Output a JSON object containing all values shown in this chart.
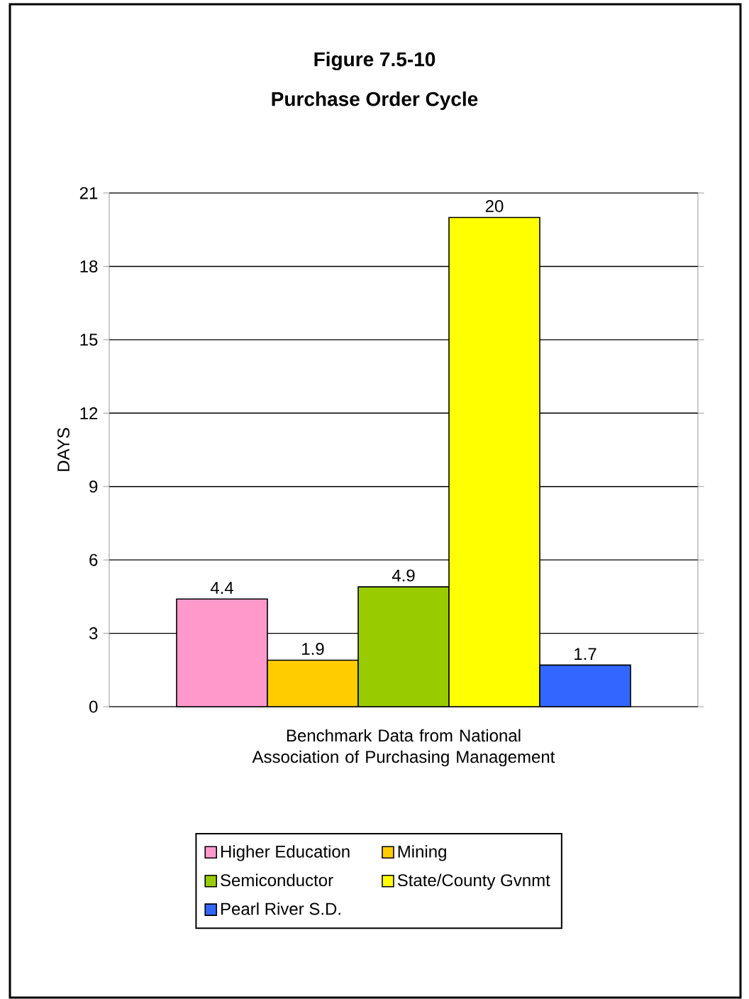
{
  "chart_data": {
    "type": "bar",
    "title": "Figure 7.5-10",
    "subtitle": "Purchase Order Cycle",
    "xlabel": "Benchmark Data from National Association of Purchasing Management",
    "ylabel": "DAYS",
    "categories": [
      null
    ],
    "series": [
      {
        "name": "Higher Education",
        "color": "#ff99cc",
        "values": [
          4.4
        ]
      },
      {
        "name": "Mining",
        "color": "#ffcc00",
        "values": [
          1.9
        ]
      },
      {
        "name": "Semiconductor",
        "color": "#99cc00",
        "values": [
          4.9
        ]
      },
      {
        "name": "State/County Gvnmt",
        "color": "#ffff00",
        "values": [
          20
        ]
      },
      {
        "name": "Pearl River S.D.",
        "color": "#3366ff",
        "values": [
          1.7
        ]
      }
    ],
    "ylim": [
      0,
      21
    ],
    "yticks": [
      0,
      3,
      6,
      9,
      12,
      15,
      18,
      21
    ],
    "grid": "y",
    "legend": "bottom",
    "data_labels": true
  }
}
